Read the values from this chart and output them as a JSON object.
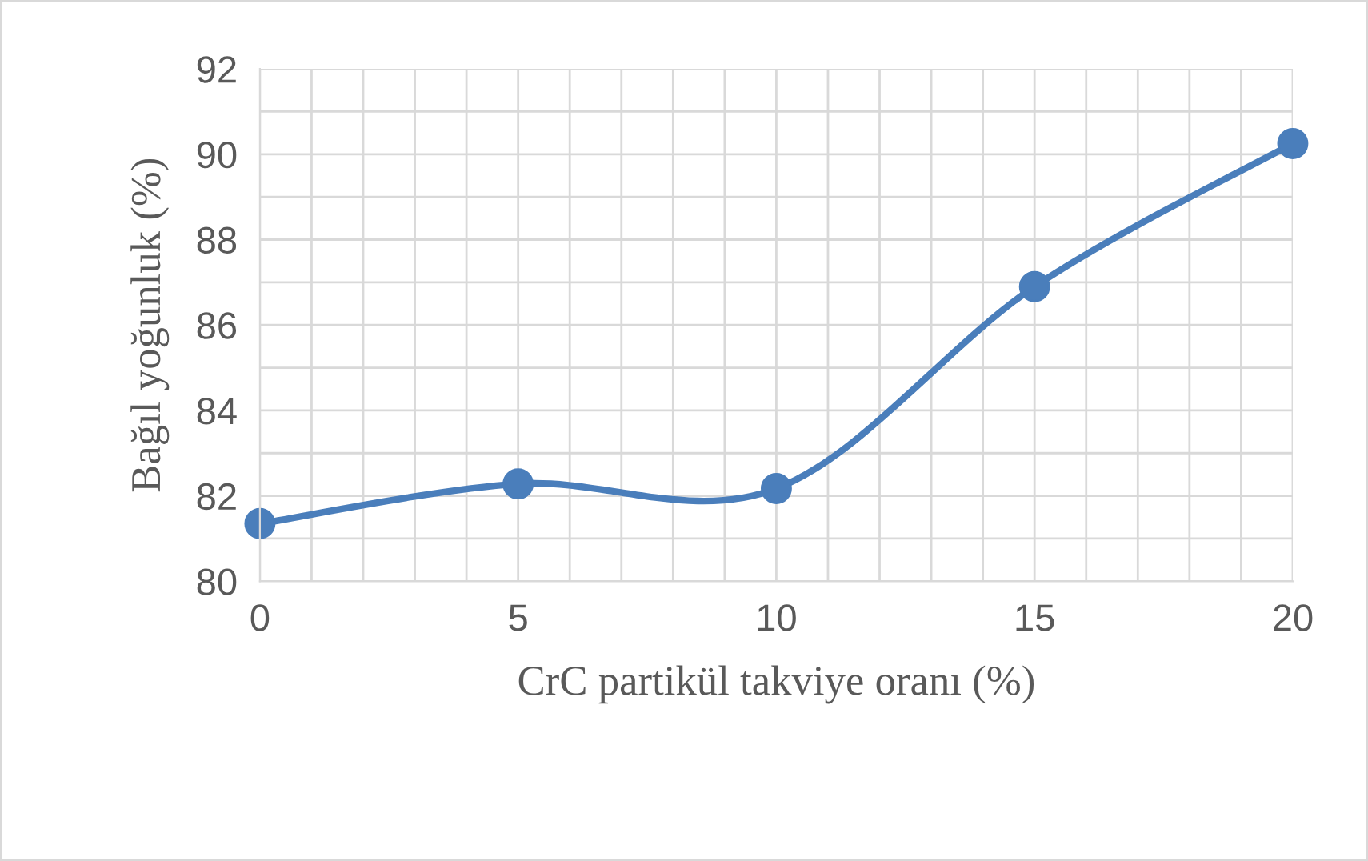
{
  "chart_data": {
    "type": "line",
    "xlabel": "CrC partikül takviye oranı (%)",
    "ylabel": "Bağıl yoğunluk (%)",
    "x": [
      0,
      5,
      10,
      15,
      20
    ],
    "series": [
      {
        "color": "#4a7ebb",
        "values": [
          81.35,
          82.28,
          82.17,
          86.9,
          90.25
        ]
      }
    ],
    "xlim": [
      0,
      20
    ],
    "xticks": [
      0,
      5,
      10,
      15,
      20
    ],
    "ylim": [
      80,
      92
    ],
    "yticks": [
      80,
      82,
      84,
      86,
      88,
      90,
      92
    ],
    "grid": true,
    "marker": "circle",
    "line_style": "solid"
  }
}
